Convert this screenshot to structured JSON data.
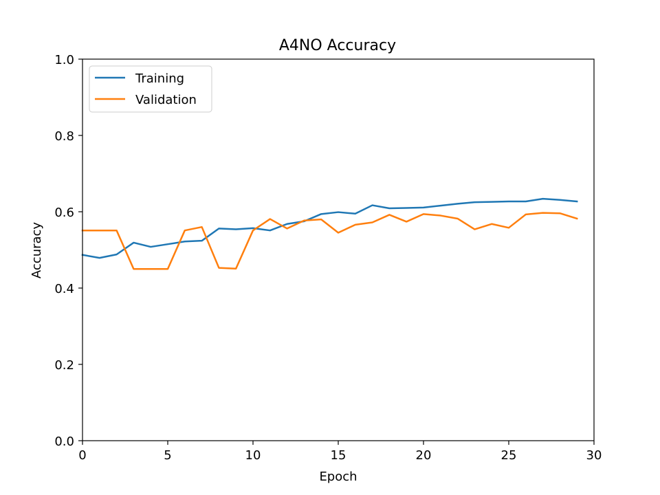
{
  "chart_data": {
    "type": "line",
    "title": "A4NO Accuracy",
    "xlabel": "Epoch",
    "ylabel": "Accuracy",
    "xlim": [
      0,
      30
    ],
    "ylim": [
      0,
      1.0
    ],
    "xticks": [
      0,
      5,
      10,
      15,
      20,
      25,
      30
    ],
    "yticks": [
      0.0,
      0.2,
      0.4,
      0.6,
      0.8,
      1.0
    ],
    "xtick_labels": [
      "0",
      "5",
      "10",
      "15",
      "20",
      "25",
      "30"
    ],
    "ytick_labels": [
      "0.0",
      "0.2",
      "0.4",
      "0.6",
      "0.8",
      "1.0"
    ],
    "grid": false,
    "legend_position": "top-left",
    "x": [
      0,
      1,
      2,
      3,
      4,
      5,
      6,
      7,
      8,
      9,
      10,
      11,
      12,
      13,
      14,
      15,
      16,
      17,
      18,
      19,
      20,
      21,
      22,
      23,
      24,
      25,
      26,
      27,
      28,
      29
    ],
    "series": [
      {
        "name": "Training",
        "color": "#1f77b4",
        "values": [
          0.487,
          0.479,
          0.488,
          0.519,
          0.508,
          0.515,
          0.522,
          0.524,
          0.556,
          0.554,
          0.557,
          0.551,
          0.568,
          0.575,
          0.594,
          0.599,
          0.595,
          0.617,
          0.609,
          0.61,
          0.611,
          0.616,
          0.621,
          0.625,
          0.626,
          0.627,
          0.627,
          0.634,
          0.631,
          0.627
        ]
      },
      {
        "name": "Validation",
        "color": "#ff7f0e",
        "values": [
          0.551,
          0.551,
          0.551,
          0.45,
          0.45,
          0.45,
          0.551,
          0.56,
          0.453,
          0.451,
          0.551,
          0.581,
          0.556,
          0.577,
          0.58,
          0.545,
          0.566,
          0.572,
          0.592,
          0.574,
          0.594,
          0.59,
          0.582,
          0.554,
          0.568,
          0.558,
          0.593,
          0.597,
          0.596,
          0.582
        ]
      }
    ]
  }
}
